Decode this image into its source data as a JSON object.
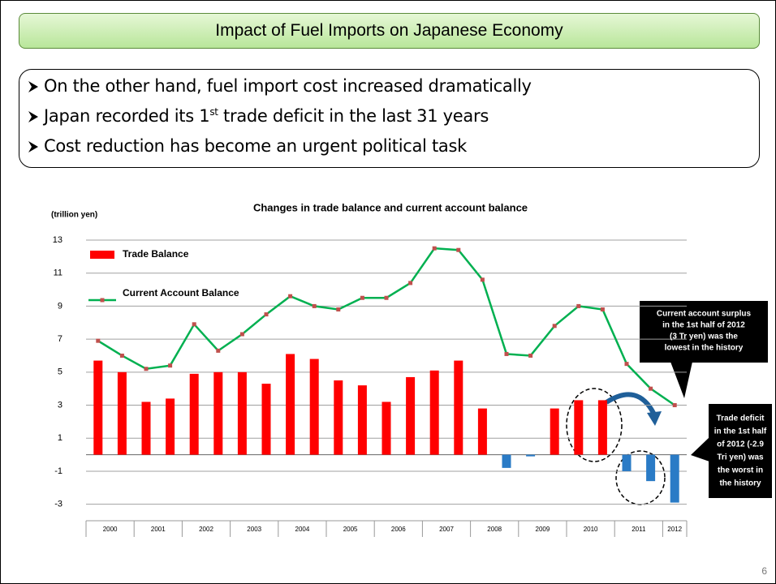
{
  "title": "Impact of Fuel Imports on Japanese Economy",
  "bullets": [
    [
      "On the other hand, fuel import cost increased dramatically"
    ],
    [
      "Japan recorded its 1",
      "st",
      " trade deficit in the last 31 years"
    ],
    [
      "Cost reduction has become an urgent political task"
    ]
  ],
  "page_number": "6",
  "chart_data": {
    "type": "combo",
    "title": "Changes in trade balance and current account balance",
    "y_label": "(trillion yen)",
    "categories": [
      "2000",
      null,
      "2001",
      null,
      "2002",
      null,
      "2003",
      null,
      "2004",
      null,
      "2005",
      null,
      "2006",
      null,
      "2007",
      null,
      "2008",
      null,
      "2009",
      null,
      "2010",
      null,
      "2011",
      null,
      "2012"
    ],
    "series": [
      {
        "name": "Trade Balance",
        "type": "bar",
        "color": "#ff0000",
        "negative_color": "#2a7bc6",
        "values": [
          5.7,
          5.0,
          3.2,
          3.4,
          4.9,
          5.0,
          5.0,
          4.3,
          6.1,
          5.8,
          4.5,
          4.2,
          3.2,
          4.7,
          5.1,
          5.7,
          2.8,
          -0.8,
          -0.1,
          2.8,
          3.3,
          3.3,
          -1.0,
          -1.6,
          -2.9
        ]
      },
      {
        "name": "Current Account Balance",
        "type": "line",
        "color": "#00b050",
        "marker_color": "#c0504d",
        "values": [
          6.9,
          6.0,
          5.2,
          5.4,
          7.9,
          6.3,
          7.3,
          8.5,
          9.6,
          9.0,
          8.8,
          9.5,
          9.5,
          10.4,
          12.5,
          12.4,
          10.6,
          6.1,
          6.0,
          7.8,
          9.0,
          8.8,
          5.5,
          4.0,
          3.0
        ]
      }
    ],
    "ylim": [
      -4,
      13
    ],
    "yticks": [
      13,
      11,
      9,
      7,
      5,
      3,
      1,
      -1,
      -3
    ],
    "grid": true,
    "legend": "top-left",
    "annotations": [
      [
        "Current account surplus",
        "in the 1st half of 2012",
        "(3 Tr yen) was the",
        "lowest in the history"
      ],
      [
        "Trade deficit",
        "in the 1st half",
        "of 2012 (-2.9",
        "Tri yen) was",
        "the worst in",
        "the history"
      ]
    ]
  }
}
